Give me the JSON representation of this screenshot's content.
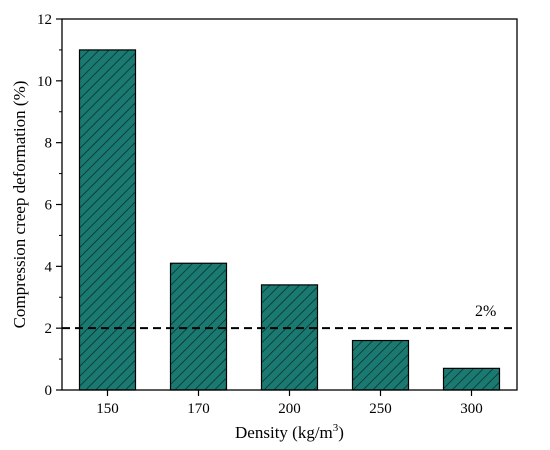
{
  "chart_data": {
    "type": "bar",
    "xlabel": "Density (kg/m",
    "xlabel_sup": "3",
    "xlabel_suffix": ")",
    "ylabel": "Compression creep deformation (%)",
    "categories": [
      "150",
      "170",
      "200",
      "250",
      "300"
    ],
    "values": [
      11.0,
      4.1,
      3.4,
      1.6,
      0.7
    ],
    "ylim": [
      0,
      12
    ],
    "yticks": [
      0,
      2,
      4,
      6,
      8,
      10,
      12
    ],
    "reference_line": {
      "value": 2,
      "label": "2%",
      "style": "dashed"
    },
    "bar_color": "#1a7a72",
    "bar_pattern": "diagonal-hatch",
    "grid": false,
    "legend": "none"
  }
}
